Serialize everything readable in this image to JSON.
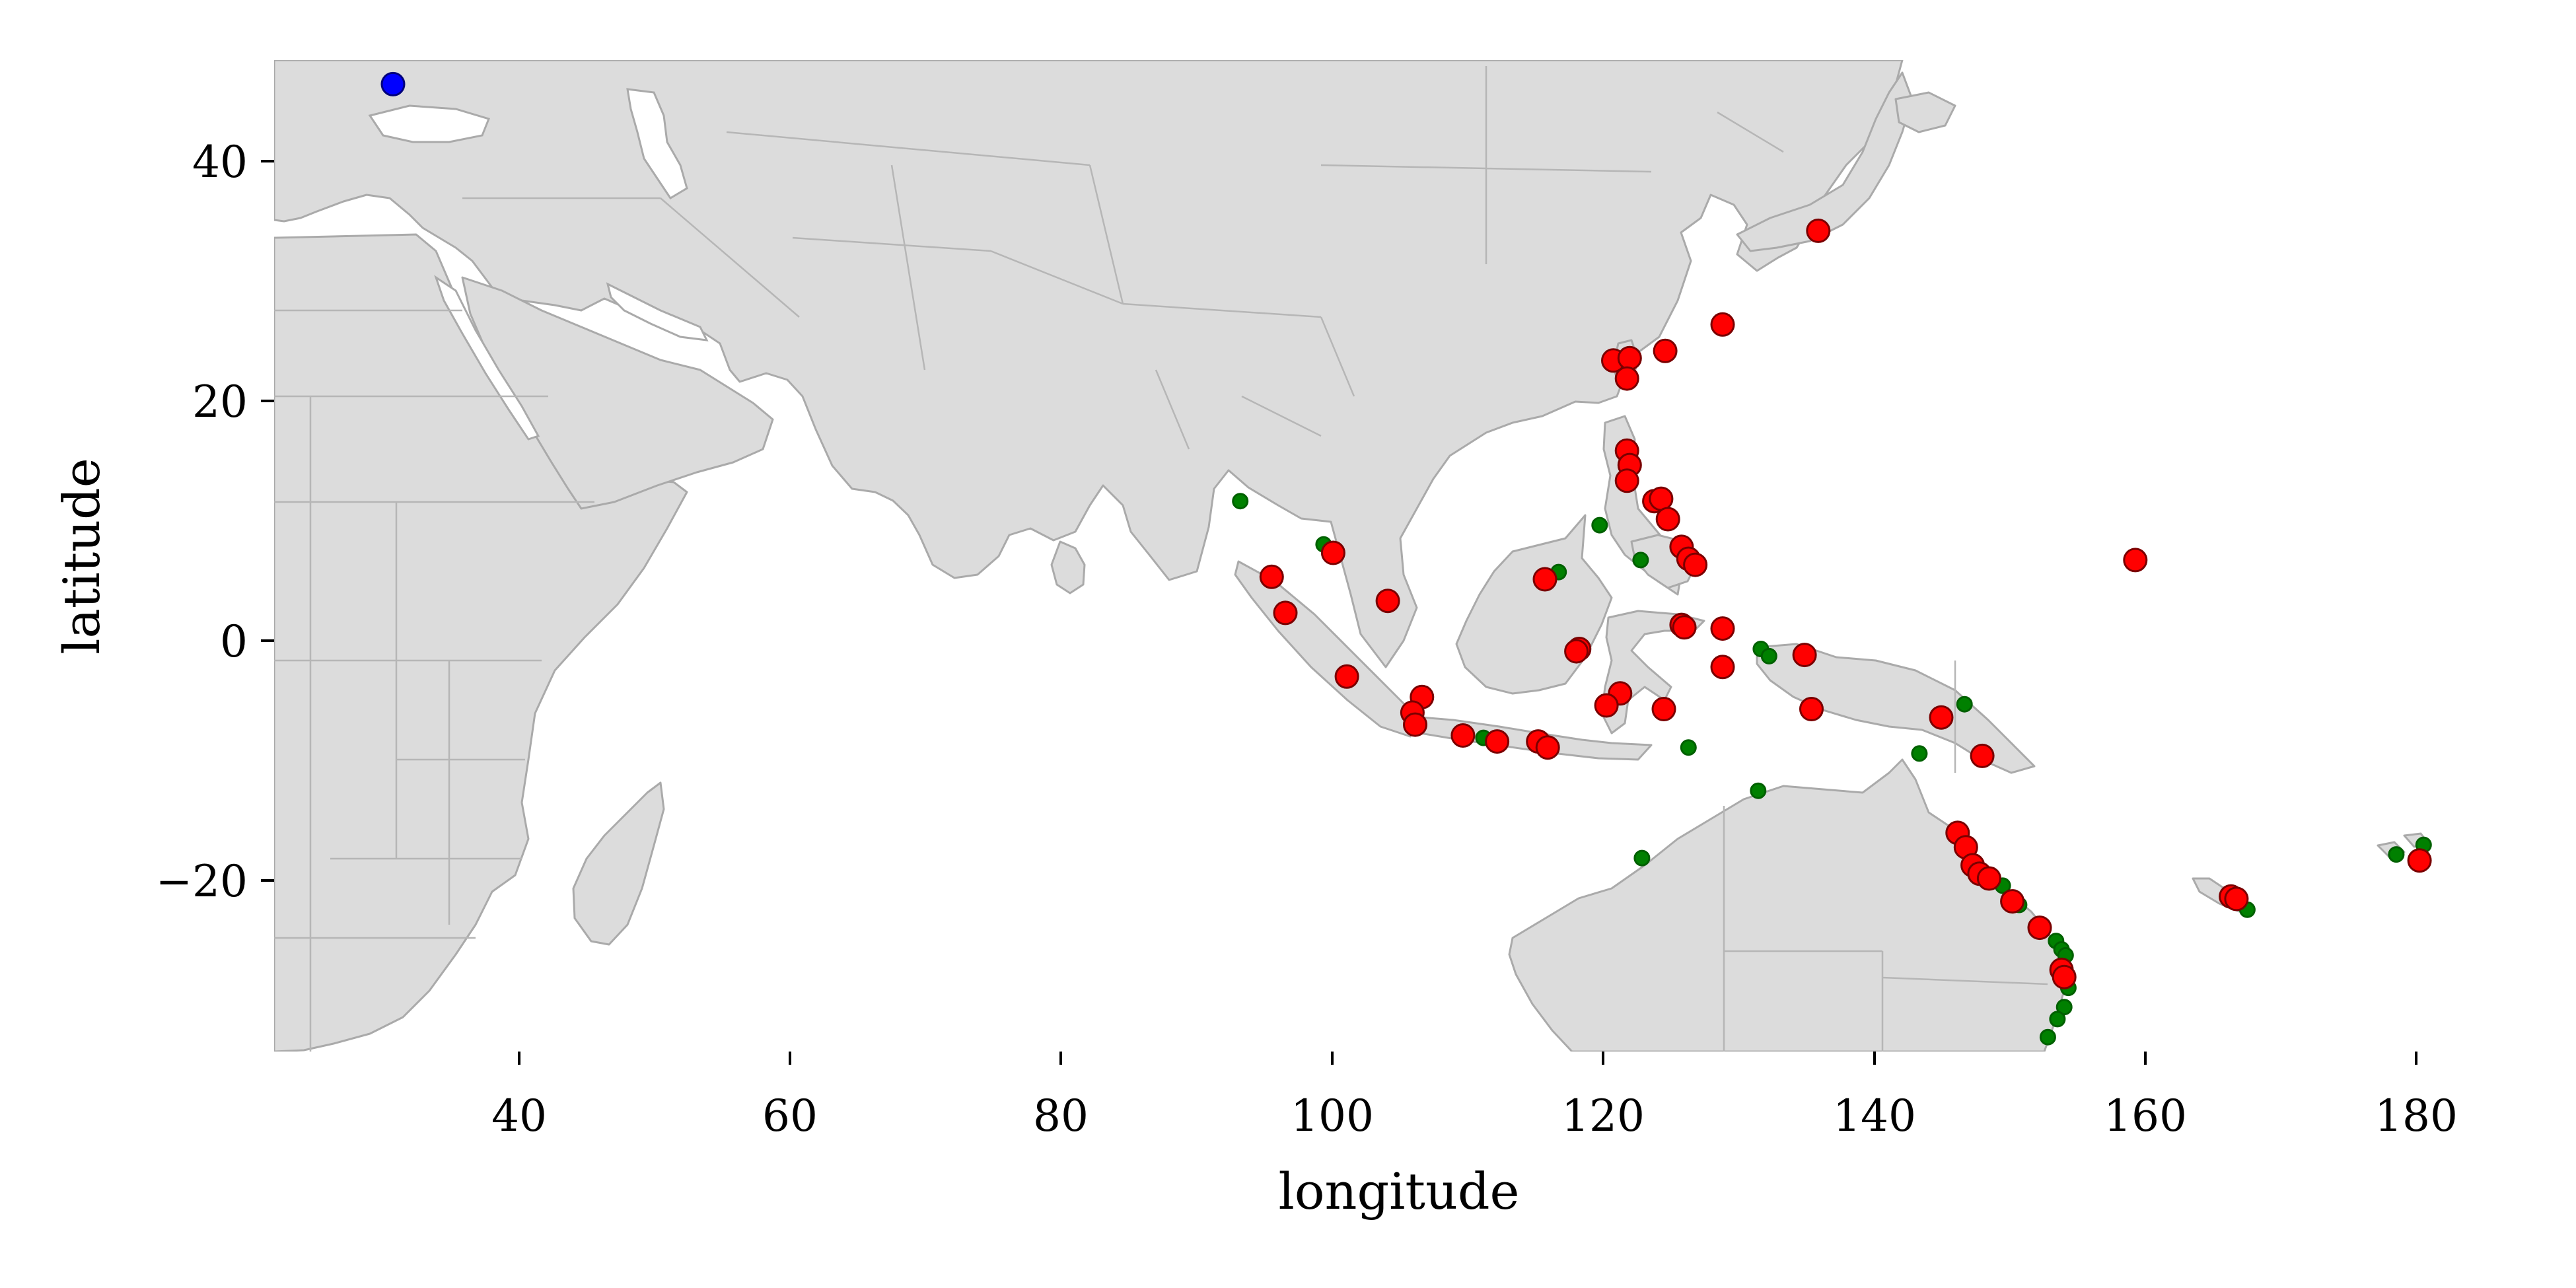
{
  "chart_data": {
    "type": "scatter",
    "xlabel": "longitude",
    "ylabel": "latitude",
    "xlim": [
      22,
      189
    ],
    "ylim": [
      -34,
      48.5
    ],
    "grid": false,
    "x_ticks": [
      40,
      60,
      80,
      100,
      120,
      140,
      160,
      180
    ],
    "y_ticks": [
      40,
      20,
      0,
      -20
    ],
    "x_tick_labels": [
      "40",
      "60",
      "80",
      "100",
      "120",
      "140",
      "160",
      "180"
    ],
    "y_tick_labels": [
      "40",
      "20",
      "0",
      "−20"
    ],
    "basemap": {
      "fill_color": "#dcdcdc",
      "border_color": "#aaaaaa",
      "regions": [
        "Eastern Europe",
        "Middle East",
        "Africa",
        "Madagascar",
        "Asia",
        "Indian subcontinent",
        "Sri Lanka",
        "Southeast Asia",
        "Sumatra",
        "Borneo",
        "Java",
        "Sulawesi",
        "Philippines",
        "Taiwan",
        "Japan",
        "New Guinea",
        "Australia",
        "New Caledonia",
        "Fiji"
      ]
    },
    "series": [
      {
        "marker_color": "#ff0000",
        "marker_edge": "#7a0000",
        "points": [
          [
            135,
            34.3
          ],
          [
            128,
            26.5
          ],
          [
            123.8,
            24.3
          ],
          [
            120,
            23.5
          ],
          [
            121.2,
            23.7
          ],
          [
            121,
            22
          ],
          [
            121,
            16
          ],
          [
            121.2,
            14.8
          ],
          [
            121,
            13.5
          ],
          [
            123,
            11.8
          ],
          [
            123.5,
            12
          ],
          [
            124,
            10.3
          ],
          [
            125,
            8
          ],
          [
            125.5,
            7
          ],
          [
            126,
            6.5
          ],
          [
            99.5,
            7.5
          ],
          [
            95,
            5.5
          ],
          [
            96,
            2.5
          ],
          [
            103.5,
            3.5
          ],
          [
            115,
            5.3
          ],
          [
            125,
            1.5
          ],
          [
            125.2,
            1.3
          ],
          [
            128,
            1.2
          ],
          [
            117.5,
            -0.5
          ],
          [
            117.3,
            -0.7
          ],
          [
            128,
            -2
          ],
          [
            134,
            -1
          ],
          [
            100.5,
            -2.8
          ],
          [
            106,
            -4.5
          ],
          [
            105.3,
            -5.8
          ],
          [
            105.5,
            -6.8
          ],
          [
            109,
            -7.7
          ],
          [
            111.5,
            -8.2
          ],
          [
            114.5,
            -8.2
          ],
          [
            115.2,
            -8.7
          ],
          [
            120.5,
            -4.2
          ],
          [
            119.5,
            -5.2
          ],
          [
            123.7,
            -5.5
          ],
          [
            134.5,
            -5.5
          ],
          [
            144,
            -6.2
          ],
          [
            158.2,
            6.9
          ],
          [
            147,
            -9.4
          ],
          [
            145.2,
            -15.8
          ],
          [
            145.8,
            -17
          ],
          [
            146.3,
            -18.5
          ],
          [
            146.8,
            -19.2
          ],
          [
            147.5,
            -19.6
          ],
          [
            149.2,
            -21.5
          ],
          [
            151.2,
            -23.7
          ],
          [
            152.8,
            -27.2
          ],
          [
            153,
            -27.8
          ],
          [
            165.2,
            -21.1
          ],
          [
            165.6,
            -21.3
          ],
          [
            179,
            -18.1
          ]
        ]
      },
      {
        "marker_color": "#008000",
        "marker_edge": "#006000",
        "points": [
          [
            92.7,
            11.8
          ],
          [
            98.8,
            8.2
          ],
          [
            116,
            5.9
          ],
          [
            119,
            9.8
          ],
          [
            122,
            6.9
          ],
          [
            130.8,
            -0.5
          ],
          [
            131.4,
            -1.1
          ],
          [
            110.5,
            -7.9
          ],
          [
            125.5,
            -8.7
          ],
          [
            145.7,
            -5.1
          ],
          [
            142.4,
            -9.2
          ],
          [
            130.6,
            -12.3
          ],
          [
            122.1,
            -17.9
          ],
          [
            148.5,
            -20.2
          ],
          [
            149.7,
            -21.8
          ],
          [
            152.4,
            -24.8
          ],
          [
            152.8,
            -25.5
          ],
          [
            153.1,
            -26
          ],
          [
            153.3,
            -28.7
          ],
          [
            153,
            -30.3
          ],
          [
            152.5,
            -31.3
          ],
          [
            151.8,
            -32.8
          ],
          [
            166.4,
            -22.2
          ],
          [
            177.3,
            -17.6
          ],
          [
            179.3,
            -16.8
          ]
        ]
      },
      {
        "marker_color": "#0000ff",
        "marker_edge": "#00007a",
        "points": [
          [
            30.7,
            46.5
          ]
        ]
      }
    ]
  }
}
